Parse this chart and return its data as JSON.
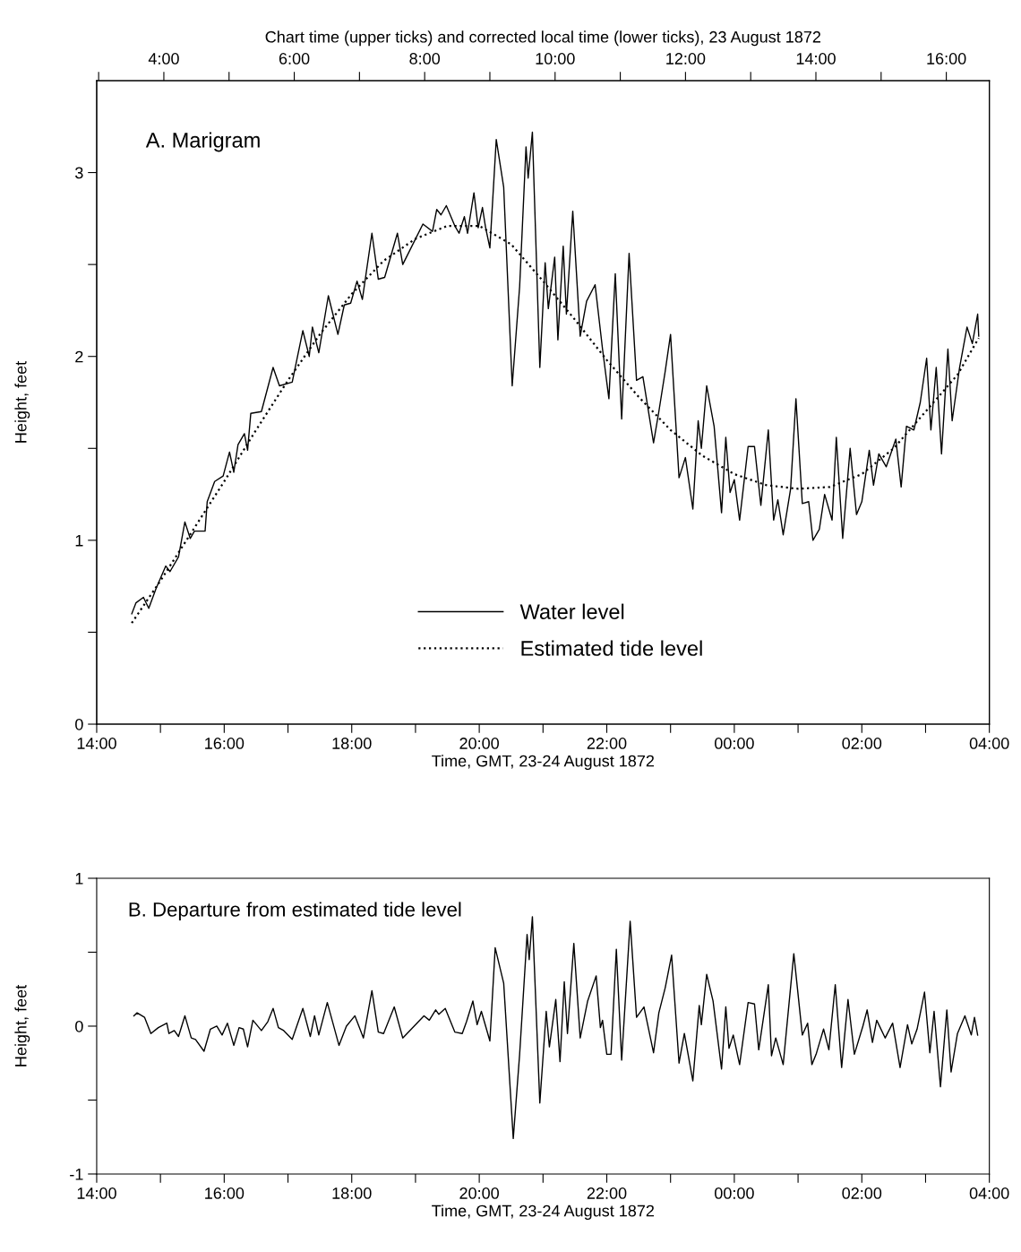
{
  "chart_data": [
    {
      "type": "line",
      "x2label": "Chart time (upper ticks) and corrected local time (lower ticks), 23 August 1872",
      "xlabel": "Time, GMT, 23-24 August 1872",
      "ylabel": "Height, feet",
      "annotations": [
        "A. Marigram"
      ],
      "xlim": [
        "1872-08-23T14:00",
        "1872-08-24T04:00"
      ],
      "xticks": [
        {
          "value": "1872-08-23T14:00",
          "label": "14:00"
        },
        {
          "value": "1872-08-23T15:00",
          "label": null
        },
        {
          "value": "1872-08-23T16:00",
          "label": "16:00"
        },
        {
          "value": "1872-08-23T17:00",
          "label": null
        },
        {
          "value": "1872-08-23T18:00",
          "label": "18:00"
        },
        {
          "value": "1872-08-23T19:00",
          "label": null
        },
        {
          "value": "1872-08-23T20:00",
          "label": "20:00"
        },
        {
          "value": "1872-08-23T21:00",
          "label": null
        },
        {
          "value": "1872-08-23T22:00",
          "label": "22:00"
        },
        {
          "value": "1872-08-23T23:00",
          "label": null
        },
        {
          "value": "1872-08-24T00:00",
          "label": "00:00"
        },
        {
          "value": "1872-08-24T01:00",
          "label": null
        },
        {
          "value": "1872-08-24T02:00",
          "label": "02:00"
        },
        {
          "value": "1872-08-24T03:00",
          "label": null
        },
        {
          "value": "1872-08-24T04:00",
          "label": "04:00"
        }
      ],
      "x2lim": [
        2.97,
        16.66
      ],
      "x2ticks": [
        {
          "value": 3,
          "label": null
        },
        {
          "value": 4,
          "label": "4:00"
        },
        {
          "value": 5,
          "label": null
        },
        {
          "value": 6,
          "label": "6:00"
        },
        {
          "value": 7,
          "label": null
        },
        {
          "value": 8,
          "label": "8:00"
        },
        {
          "value": 9,
          "label": null
        },
        {
          "value": 10,
          "label": "10:00"
        },
        {
          "value": 11,
          "label": null
        },
        {
          "value": 12,
          "label": "12:00"
        },
        {
          "value": 13,
          "label": null
        },
        {
          "value": 14,
          "label": "14:00"
        },
        {
          "value": 15,
          "label": null
        },
        {
          "value": 16,
          "label": "16:00"
        }
      ],
      "ylim": [
        0,
        3.5
      ],
      "yticks": [
        0,
        {
          "value": 0.5,
          "label": null
        },
        1,
        {
          "value": 1.5,
          "label": null
        },
        2,
        {
          "value": 2.5,
          "label": null
        },
        3
      ],
      "legend": "bottom",
      "series": [
        {
          "name": "Water level",
          "color": "#000000",
          "line_style": "solid",
          "x": [
            "1872-08-23T14:33",
            "1872-08-23T14:37",
            "1872-08-23T14:44",
            "1872-08-23T14:49",
            "1872-08-23T14:56",
            "1872-08-23T15:05",
            "1872-08-23T15:09",
            "1872-08-23T15:17",
            "1872-08-23T15:23",
            "1872-08-23T15:28",
            "1872-08-23T15:32",
            "1872-08-23T15:42",
            "1872-08-23T15:44",
            "1872-08-23T15:51",
            "1872-08-23T15:59",
            "1872-08-23T16:05",
            "1872-08-23T16:09",
            "1872-08-23T16:13",
            "1872-08-23T16:19",
            "1872-08-23T16:22",
            "1872-08-23T16:25",
            "1872-08-23T16:35",
            "1872-08-23T16:46",
            "1872-08-23T16:52",
            "1872-08-23T17:04",
            "1872-08-23T17:14",
            "1872-08-23T17:20",
            "1872-08-23T17:23",
            "1872-08-23T17:29",
            "1872-08-23T17:38",
            "1872-08-23T17:47",
            "1872-08-23T17:53",
            "1872-08-23T17:59",
            "1872-08-23T18:05",
            "1872-08-23T18:10",
            "1872-08-23T18:19",
            "1872-08-23T18:25",
            "1872-08-23T18:31",
            "1872-08-23T18:43",
            "1872-08-23T18:48",
            "1872-08-23T19:07",
            "1872-08-23T19:16",
            "1872-08-23T19:20",
            "1872-08-23T19:24",
            "1872-08-23T19:29",
            "1872-08-23T19:37",
            "1872-08-23T19:41",
            "1872-08-23T19:46",
            "1872-08-23T19:49",
            "1872-08-23T19:55",
            "1872-08-23T19:59",
            "1872-08-23T20:03",
            "1872-08-23T20:06",
            "1872-08-23T20:10",
            "1872-08-23T20:16",
            "1872-08-23T20:23",
            "1872-08-23T20:31",
            "1872-08-23T20:38",
            "1872-08-23T20:44",
            "1872-08-23T20:46",
            "1872-08-23T20:50",
            "1872-08-23T20:57",
            "1872-08-23T21:02",
            "1872-08-23T21:05",
            "1872-08-23T21:11",
            "1872-08-23T21:14",
            "1872-08-23T21:19",
            "1872-08-23T21:22",
            "1872-08-23T21:28",
            "1872-08-23T21:35",
            "1872-08-23T21:41",
            "1872-08-23T21:49",
            "1872-08-23T21:56",
            "1872-08-23T22:02",
            "1872-08-23T22:08",
            "1872-08-23T22:14",
            "1872-08-23T22:21",
            "1872-08-23T22:28",
            "1872-08-23T22:34",
            "1872-08-23T22:44",
            "1872-08-23T22:49",
            "1872-08-23T22:55",
            "1872-08-23T23:00",
            "1872-08-23T23:08",
            "1872-08-23T23:14",
            "1872-08-23T23:21",
            "1872-08-23T23:26",
            "1872-08-23T23:29",
            "1872-08-23T23:34",
            "1872-08-23T23:41",
            "1872-08-23T23:48",
            "1872-08-23T23:52",
            "1872-08-23T23:56",
            "1872-08-24T00:00",
            "1872-08-24T00:05",
            "1872-08-24T00:13",
            "1872-08-24T00:19",
            "1872-08-24T00:25",
            "1872-08-24T00:32",
            "1872-08-24T00:37",
            "1872-08-24T00:41",
            "1872-08-24T00:46",
            "1872-08-24T00:53",
            "1872-08-24T00:58",
            "1872-08-24T01:04",
            "1872-08-24T01:10",
            "1872-08-24T01:14",
            "1872-08-24T01:20",
            "1872-08-24T01:25",
            "1872-08-24T01:32",
            "1872-08-24T01:36",
            "1872-08-24T01:42",
            "1872-08-24T01:49",
            "1872-08-24T01:55",
            "1872-08-24T02:00",
            "1872-08-24T02:07",
            "1872-08-24T02:11",
            "1872-08-24T02:16",
            "1872-08-24T02:23",
            "1872-08-24T02:32",
            "1872-08-24T02:37",
            "1872-08-24T02:42",
            "1872-08-24T02:49",
            "1872-08-24T02:55",
            "1872-08-24T03:01",
            "1872-08-24T03:05",
            "1872-08-24T03:10",
            "1872-08-24T03:15",
            "1872-08-24T03:21",
            "1872-08-24T03:25",
            "1872-08-24T03:32",
            "1872-08-24T03:39",
            "1872-08-24T03:44",
            "1872-08-24T03:49",
            "1872-08-24T03:50"
          ],
          "values": [
            0.6,
            0.66,
            0.69,
            0.63,
            0.74,
            0.86,
            0.83,
            0.91,
            1.1,
            1.01,
            1.05,
            1.05,
            1.21,
            1.32,
            1.35,
            1.48,
            1.37,
            1.52,
            1.58,
            1.49,
            1.69,
            1.7,
            1.94,
            1.84,
            1.86,
            2.14,
            2.0,
            2.16,
            2.02,
            2.33,
            2.12,
            2.28,
            2.29,
            2.41,
            2.31,
            2.67,
            2.42,
            2.43,
            2.67,
            2.5,
            2.72,
            2.68,
            2.8,
            2.77,
            2.82,
            2.71,
            2.67,
            2.76,
            2.67,
            2.89,
            2.7,
            2.81,
            2.7,
            2.59,
            3.18,
            2.92,
            1.84,
            2.38,
            3.14,
            2.97,
            3.22,
            1.94,
            2.51,
            2.26,
            2.54,
            2.09,
            2.6,
            2.23,
            2.79,
            2.11,
            2.3,
            2.39,
            2.04,
            1.77,
            2.45,
            1.66,
            2.56,
            1.87,
            1.89,
            1.53,
            1.7,
            1.92,
            2.12,
            1.34,
            1.45,
            1.17,
            1.65,
            1.5,
            1.84,
            1.62,
            1.15,
            1.56,
            1.26,
            1.33,
            1.11,
            1.51,
            1.51,
            1.19,
            1.6,
            1.11,
            1.22,
            1.03,
            1.28,
            1.77,
            1.2,
            1.21,
            1.0,
            1.06,
            1.25,
            1.11,
            1.56,
            1.01,
            1.5,
            1.14,
            1.21,
            1.49,
            1.3,
            1.47,
            1.4,
            1.55,
            1.29,
            1.62,
            1.6,
            1.75,
            1.99,
            1.6,
            1.94,
            1.47,
            2.04,
            1.65,
            1.94,
            2.16,
            2.07,
            2.23,
            2.11
          ]
        },
        {
          "name": "Estimated tide level",
          "color": "#000000",
          "line_style": "dotted",
          "x": [
            "1872-08-23T14:33",
            "1872-08-23T15:00",
            "1872-08-23T15:30",
            "1872-08-23T16:00",
            "1872-08-23T16:30",
            "1872-08-23T17:00",
            "1872-08-23T17:30",
            "1872-08-23T18:00",
            "1872-08-23T18:30",
            "1872-08-23T19:00",
            "1872-08-23T19:30",
            "1872-08-23T20:00",
            "1872-08-23T20:30",
            "1872-08-23T21:00",
            "1872-08-23T21:30",
            "1872-08-23T22:00",
            "1872-08-23T22:30",
            "1872-08-23T23:00",
            "1872-08-23T23:30",
            "1872-08-24T00:00",
            "1872-08-24T00:30",
            "1872-08-24T01:00",
            "1872-08-24T01:30",
            "1872-08-24T02:00",
            "1872-08-24T02:30",
            "1872-08-24T03:00",
            "1872-08-24T03:30",
            "1872-08-24T03:50"
          ],
          "values": [
            0.55,
            0.78,
            1.05,
            1.32,
            1.6,
            1.87,
            2.12,
            2.34,
            2.52,
            2.64,
            2.71,
            2.71,
            2.61,
            2.41,
            2.2,
            1.98,
            1.78,
            1.6,
            1.46,
            1.36,
            1.3,
            1.28,
            1.29,
            1.36,
            1.5,
            1.7,
            1.9,
            2.1
          ]
        }
      ]
    },
    {
      "type": "line",
      "xlabel": "Time, GMT, 23-24 August 1872",
      "ylabel": "Height, feet",
      "annotations": [
        "B. Departure from estimated tide level"
      ],
      "xlim": [
        "1872-08-23T14:00",
        "1872-08-24T04:00"
      ],
      "xticks": [
        {
          "value": "1872-08-23T14:00",
          "label": "14:00"
        },
        {
          "value": "1872-08-23T15:00",
          "label": null
        },
        {
          "value": "1872-08-23T16:00",
          "label": "16:00"
        },
        {
          "value": "1872-08-23T17:00",
          "label": null
        },
        {
          "value": "1872-08-23T18:00",
          "label": "18:00"
        },
        {
          "value": "1872-08-23T19:00",
          "label": null
        },
        {
          "value": "1872-08-23T20:00",
          "label": "20:00"
        },
        {
          "value": "1872-08-23T21:00",
          "label": null
        },
        {
          "value": "1872-08-23T22:00",
          "label": "22:00"
        },
        {
          "value": "1872-08-23T23:00",
          "label": null
        },
        {
          "value": "1872-08-24T00:00",
          "label": "00:00"
        },
        {
          "value": "1872-08-24T01:00",
          "label": null
        },
        {
          "value": "1872-08-24T02:00",
          "label": "02:00"
        },
        {
          "value": "1872-08-24T03:00",
          "label": null
        },
        {
          "value": "1872-08-24T04:00",
          "label": "04:00"
        }
      ],
      "ylim": [
        -1,
        1
      ],
      "yticks": [
        -1,
        {
          "value": -0.5,
          "label": null
        },
        0,
        {
          "value": 0.5,
          "label": null
        },
        1
      ],
      "series": [
        {
          "color": "#000000",
          "line_style": "solid",
          "x": [
            "1872-08-23T14:35",
            "1872-08-23T14:38",
            "1872-08-23T14:45",
            "1872-08-23T14:51",
            "1872-08-23T14:58",
            "1872-08-23T15:06",
            "1872-08-23T15:08",
            "1872-08-23T15:13",
            "1872-08-23T15:17",
            "1872-08-23T15:23",
            "1872-08-23T15:29",
            "1872-08-23T15:33",
            "1872-08-23T15:41",
            "1872-08-23T15:47",
            "1872-08-23T15:53",
            "1872-08-23T15:58",
            "1872-08-23T16:03",
            "1872-08-23T16:09",
            "1872-08-23T16:14",
            "1872-08-23T16:18",
            "1872-08-23T16:22",
            "1872-08-23T16:27",
            "1872-08-23T16:35",
            "1872-08-23T16:41",
            "1872-08-23T16:46",
            "1872-08-23T16:51",
            "1872-08-23T16:56",
            "1872-08-23T17:04",
            "1872-08-23T17:14",
            "1872-08-23T17:21",
            "1872-08-23T17:25",
            "1872-08-23T17:29",
            "1872-08-23T17:37",
            "1872-08-23T17:48",
            "1872-08-23T17:55",
            "1872-08-23T18:03",
            "1872-08-23T18:11",
            "1872-08-23T18:19",
            "1872-08-23T18:25",
            "1872-08-23T18:30",
            "1872-08-23T18:40",
            "1872-08-23T18:48",
            "1872-08-23T19:08",
            "1872-08-23T19:13",
            "1872-08-23T19:19",
            "1872-08-23T19:22",
            "1872-08-23T19:28",
            "1872-08-23T19:37",
            "1872-08-23T19:44",
            "1872-08-23T19:48",
            "1872-08-23T19:54",
            "1872-08-23T19:58",
            "1872-08-23T20:02",
            "1872-08-23T20:10",
            "1872-08-23T20:15",
            "1872-08-23T20:23",
            "1872-08-23T20:32",
            "1872-08-23T20:38",
            "1872-08-23T20:45",
            "1872-08-23T20:47",
            "1872-08-23T20:50",
            "1872-08-23T20:57",
            "1872-08-23T21:03",
            "1872-08-23T21:06",
            "1872-08-23T21:12",
            "1872-08-23T21:16",
            "1872-08-23T21:20",
            "1872-08-23T21:23",
            "1872-08-23T21:29",
            "1872-08-23T21:35",
            "1872-08-23T21:42",
            "1872-08-23T21:50",
            "1872-08-23T21:54",
            "1872-08-23T21:56",
            "1872-08-23T22:00",
            "1872-08-23T22:04",
            "1872-08-23T22:09",
            "1872-08-23T22:14",
            "1872-08-23T22:22",
            "1872-08-23T22:28",
            "1872-08-23T22:35",
            "1872-08-23T22:44",
            "1872-08-23T22:49",
            "1872-08-23T22:55",
            "1872-08-23T23:01",
            "1872-08-23T23:08",
            "1872-08-23T23:13",
            "1872-08-23T23:21",
            "1872-08-23T23:27",
            "1872-08-23T23:29",
            "1872-08-23T23:34",
            "1872-08-23T23:40",
            "1872-08-23T23:48",
            "1872-08-23T23:52",
            "1872-08-23T23:55",
            "1872-08-23T23:59",
            "1872-08-24T00:05",
            "1872-08-24T00:13",
            "1872-08-24T00:19",
            "1872-08-24T00:23",
            "1872-08-24T00:32",
            "1872-08-24T00:35",
            "1872-08-24T00:39",
            "1872-08-24T00:46",
            "1872-08-24T00:56",
            "1872-08-24T01:04",
            "1872-08-24T01:09",
            "1872-08-24T01:13",
            "1872-08-24T01:17",
            "1872-08-24T01:24",
            "1872-08-24T01:29",
            "1872-08-24T01:35",
            "1872-08-24T01:41",
            "1872-08-24T01:47",
            "1872-08-24T01:53",
            "1872-08-24T02:01",
            "1872-08-24T02:05",
            "1872-08-24T02:10",
            "1872-08-24T02:14",
            "1872-08-24T02:22",
            "1872-08-24T02:29",
            "1872-08-24T02:36",
            "1872-08-24T02:43",
            "1872-08-24T02:47",
            "1872-08-24T02:52",
            "1872-08-24T02:59",
            "1872-08-24T03:04",
            "1872-08-24T03:08",
            "1872-08-24T03:14",
            "1872-08-24T03:20",
            "1872-08-24T03:24",
            "1872-08-24T03:30",
            "1872-08-24T03:37",
            "1872-08-24T03:43",
            "1872-08-24T03:46",
            "1872-08-24T03:49"
          ],
          "values": [
            0.07,
            0.09,
            0.06,
            -0.05,
            -0.01,
            0.02,
            -0.05,
            -0.03,
            -0.07,
            0.07,
            -0.08,
            -0.09,
            -0.17,
            -0.02,
            0.0,
            -0.06,
            0.02,
            -0.13,
            -0.01,
            -0.02,
            -0.14,
            0.04,
            -0.03,
            0.03,
            0.12,
            -0.01,
            -0.03,
            -0.09,
            0.12,
            -0.07,
            0.07,
            -0.06,
            0.16,
            -0.13,
            0.0,
            0.07,
            -0.08,
            0.24,
            -0.04,
            -0.05,
            0.13,
            -0.08,
            0.07,
            0.04,
            0.11,
            0.08,
            0.12,
            -0.04,
            -0.05,
            0.03,
            0.17,
            0.01,
            0.1,
            -0.1,
            0.53,
            0.29,
            -0.76,
            -0.19,
            0.62,
            0.45,
            0.74,
            -0.52,
            0.1,
            -0.14,
            0.18,
            -0.24,
            0.3,
            -0.05,
            0.56,
            -0.08,
            0.17,
            0.34,
            -0.01,
            0.04,
            -0.19,
            -0.19,
            0.52,
            -0.23,
            0.71,
            0.06,
            0.13,
            -0.18,
            0.09,
            0.26,
            0.48,
            -0.25,
            -0.05,
            -0.37,
            0.14,
            0.01,
            0.35,
            0.17,
            -0.29,
            0.13,
            -0.15,
            -0.06,
            -0.26,
            0.16,
            0.15,
            -0.16,
            0.28,
            -0.2,
            -0.08,
            -0.26,
            0.49,
            -0.06,
            0.02,
            -0.26,
            -0.19,
            -0.02,
            -0.16,
            0.28,
            -0.28,
            0.18,
            -0.19,
            0.0,
            0.11,
            -0.11,
            0.04,
            -0.08,
            0.02,
            -0.28,
            0.01,
            -0.12,
            -0.02,
            0.23,
            -0.18,
            0.1,
            -0.41,
            0.11,
            -0.31,
            -0.05,
            0.07,
            -0.06,
            0.06,
            -0.06
          ]
        }
      ]
    }
  ]
}
